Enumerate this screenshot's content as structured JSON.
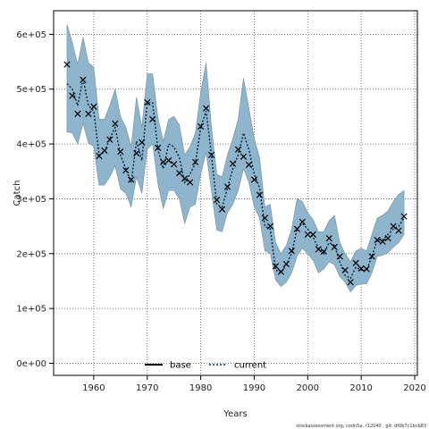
{
  "chart_data": {
    "type": "line",
    "xlabel": "Years",
    "ylabel": "Catch",
    "xlim": [
      1952.5,
      2020.5
    ],
    "ylim": [
      -22000,
      643000
    ],
    "x_ticks": [
      1960,
      1970,
      1980,
      1990,
      2000,
      2010,
      2020
    ],
    "y_ticks": [
      0,
      100000,
      200000,
      300000,
      400000,
      500000,
      600000
    ],
    "y_tick_labels": [
      "0e+00",
      "1e+05",
      "2e+05",
      "3e+05",
      "4e+05",
      "5e+05",
      "6e+05"
    ],
    "grid": true,
    "legend_position": "bottom-center",
    "legend": [
      {
        "label": "base",
        "style": "solid",
        "color": "#000000"
      },
      {
        "label": "current",
        "style": "dotted",
        "color": "#1f4e79"
      }
    ],
    "band_color": "#8fb5cc",
    "x": [
      1955,
      1956,
      1957,
      1958,
      1959,
      1960,
      1961,
      1962,
      1963,
      1964,
      1965,
      1966,
      1967,
      1968,
      1969,
      1970,
      1971,
      1972,
      1973,
      1974,
      1975,
      1976,
      1977,
      1978,
      1979,
      1980,
      1981,
      1982,
      1983,
      1984,
      1985,
      1986,
      1987,
      1988,
      1989,
      1990,
      1991,
      1992,
      1993,
      1994,
      1995,
      1996,
      1997,
      1998,
      1999,
      2000,
      2001,
      2002,
      2003,
      2004,
      2005,
      2006,
      2007,
      2008,
      2009,
      2010,
      2011,
      2012,
      2013,
      2014,
      2015,
      2016,
      2017,
      2018
    ],
    "series": [
      {
        "name": "current",
        "line": [
          510000,
          500000,
          470000,
          520000,
          470000,
          460000,
          380000,
          385000,
          410000,
          430000,
          380000,
          355000,
          330000,
          405000,
          370000,
          475000,
          475000,
          390000,
          355000,
          400000,
          395000,
          375000,
          330000,
          345000,
          365000,
          430000,
          460000,
          380000,
          290000,
          285000,
          320000,
          355000,
          380000,
          420000,
          390000,
          345000,
          320000,
          250000,
          245000,
          170000,
          165000,
          180000,
          200000,
          245000,
          255000,
          245000,
          230000,
          210000,
          200000,
          220000,
          215000,
          185000,
          160000,
          155000,
          175000,
          170000,
          170000,
          195000,
          225000,
          225000,
          235000,
          245000,
          250000,
          265000
        ],
        "points": [
          545000,
          488000,
          455000,
          517000,
          455000,
          468000,
          378000,
          388000,
          408000,
          437000,
          386000,
          352000,
          335000,
          383000,
          403000,
          476000,
          445000,
          393000,
          367000,
          370000,
          363000,
          347000,
          337000,
          330000,
          367000,
          432000,
          465000,
          380000,
          298000,
          281000,
          322000,
          364000,
          390000,
          377000,
          362000,
          335000,
          307000,
          265000,
          250000,
          177000,
          167000,
          181000,
          205000,
          245000,
          258000,
          235000,
          235000,
          208000,
          204000,
          228000,
          212000,
          195000,
          170000,
          148000,
          183000,
          173000,
          172000,
          195000,
          225000,
          222000,
          228000,
          250000,
          242000,
          268000
        ],
        "upper": [
          618000,
          585000,
          545000,
          595000,
          548000,
          540000,
          445000,
          445000,
          470000,
          500000,
          450000,
          430000,
          395000,
          485000,
          430000,
          528000,
          528000,
          448000,
          405000,
          445000,
          450000,
          435000,
          380000,
          395000,
          420000,
          495000,
          548000,
          432000,
          345000,
          340000,
          380000,
          410000,
          445000,
          520000,
          465000,
          410000,
          375000,
          285000,
          290000,
          220000,
          200000,
          215000,
          245000,
          300000,
          295000,
          275000,
          262000,
          240000,
          240000,
          260000,
          270000,
          220000,
          200000,
          185000,
          205000,
          210000,
          205000,
          235000,
          265000,
          270000,
          278000,
          295000,
          308000,
          315000
        ],
        "lower": [
          422000,
          420000,
          400000,
          438000,
          402000,
          395000,
          325000,
          325000,
          340000,
          360000,
          318000,
          310000,
          285000,
          340000,
          310000,
          390000,
          400000,
          328000,
          282000,
          315000,
          315000,
          300000,
          255000,
          285000,
          290000,
          345000,
          385000,
          315000,
          243000,
          240000,
          275000,
          290000,
          315000,
          355000,
          330000,
          285000,
          265000,
          205000,
          200000,
          152000,
          140000,
          148000,
          165000,
          195000,
          210000,
          200000,
          188000,
          165000,
          172000,
          185000,
          180000,
          158000,
          148000,
          130000,
          142000,
          145000,
          145000,
          165000,
          195000,
          197000,
          202000,
          212000,
          220000,
          235000
        ]
      }
    ],
    "footnote": "stockassessment.org, codn5a, r12040 , git: df0b7c1bcb83"
  }
}
